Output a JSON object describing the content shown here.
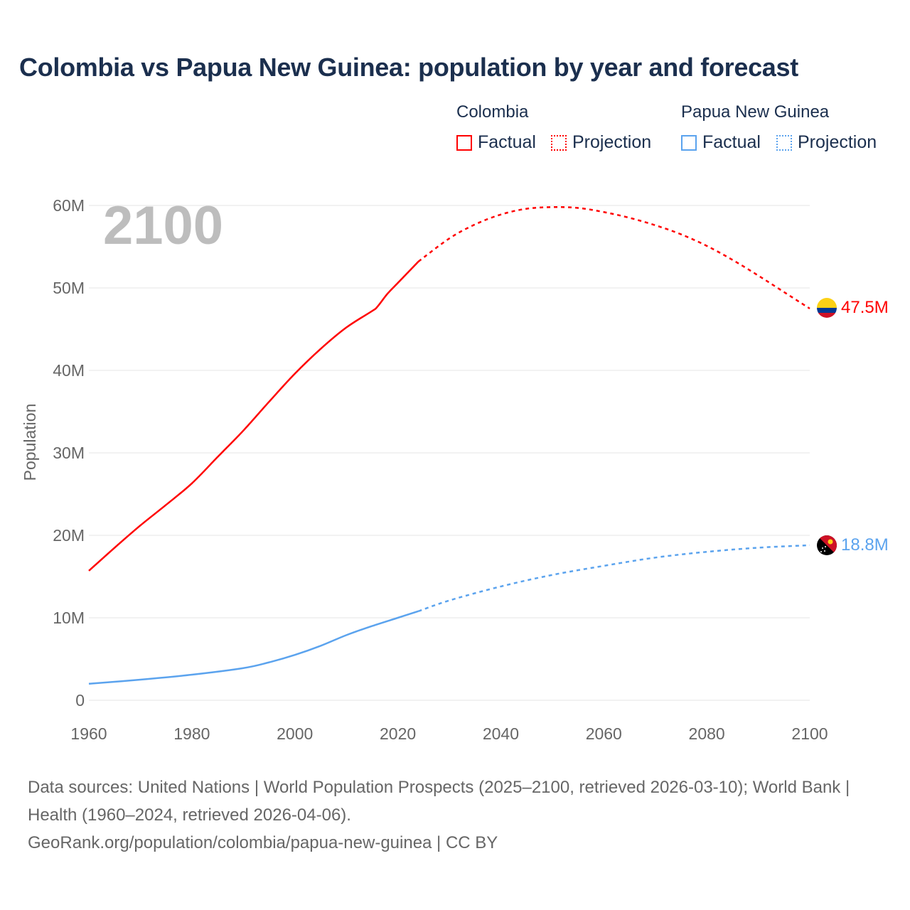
{
  "title": "Colombia vs Papua New Guinea: population by year and forecast",
  "legend": {
    "groups": [
      {
        "name": "Colombia",
        "factual": "Factual",
        "projection": "Projection"
      },
      {
        "name": "Papua New Guinea",
        "factual": "Factual",
        "projection": "Projection"
      }
    ]
  },
  "footer": {
    "line1": "Data sources: United Nations | World Population Prospects (2025–2100, retrieved 2026-03-10); World Bank | Health (1960–2024, retrieved 2026-04-06).",
    "line2": "GeoRank.org/population/colombia/papua-new-guinea | CC BY"
  },
  "chart_data": {
    "type": "line",
    "title": "Colombia vs Papua New Guinea: population by year and forecast",
    "xlabel": "",
    "ylabel": "Population",
    "xlim": [
      1960,
      2100
    ],
    "ylim": [
      0,
      60000000
    ],
    "x_ticks": [
      "1960",
      "1980",
      "2000",
      "2020",
      "2040",
      "2060",
      "2080",
      "2100"
    ],
    "y_ticks": [
      "0",
      "10M",
      "20M",
      "30M",
      "40M",
      "50M",
      "60M"
    ],
    "year_watermark": "2100",
    "grid": true,
    "series": [
      {
        "name": "Colombia",
        "color": "#ff0000",
        "end_label": "47.5M",
        "factual": [
          [
            1960,
            15.7
          ],
          [
            1965,
            18.5
          ],
          [
            1970,
            21.2
          ],
          [
            1975,
            23.7
          ],
          [
            1980,
            26.3
          ],
          [
            1985,
            29.5
          ],
          [
            1990,
            32.7
          ],
          [
            1995,
            36.2
          ],
          [
            2000,
            39.6
          ],
          [
            2005,
            42.6
          ],
          [
            2010,
            45.2
          ],
          [
            2015,
            47.2
          ],
          [
            2016,
            47.7
          ],
          [
            2018,
            49.3
          ],
          [
            2020,
            50.6
          ],
          [
            2024,
            53.2
          ]
        ],
        "projection": [
          [
            2024,
            53.2
          ],
          [
            2030,
            56.0
          ],
          [
            2035,
            57.7
          ],
          [
            2040,
            58.9
          ],
          [
            2045,
            59.6
          ],
          [
            2050,
            59.8
          ],
          [
            2055,
            59.7
          ],
          [
            2060,
            59.2
          ],
          [
            2065,
            58.5
          ],
          [
            2070,
            57.6
          ],
          [
            2075,
            56.5
          ],
          [
            2080,
            55.1
          ],
          [
            2085,
            53.4
          ],
          [
            2090,
            51.5
          ],
          [
            2095,
            49.5
          ],
          [
            2100,
            47.5
          ]
        ]
      },
      {
        "name": "Papua New Guinea",
        "color": "#5ba3ee",
        "end_label": "18.8M",
        "factual": [
          [
            1960,
            2.0
          ],
          [
            1970,
            2.5
          ],
          [
            1980,
            3.1
          ],
          [
            1990,
            3.9
          ],
          [
            1995,
            4.6
          ],
          [
            2000,
            5.5
          ],
          [
            2005,
            6.6
          ],
          [
            2010,
            7.9
          ],
          [
            2015,
            9.0
          ],
          [
            2020,
            10.0
          ],
          [
            2024,
            10.8
          ]
        ],
        "projection": [
          [
            2024,
            10.8
          ],
          [
            2030,
            12.1
          ],
          [
            2040,
            13.8
          ],
          [
            2050,
            15.2
          ],
          [
            2060,
            16.3
          ],
          [
            2070,
            17.3
          ],
          [
            2080,
            18.0
          ],
          [
            2090,
            18.5
          ],
          [
            2100,
            18.8
          ]
        ]
      }
    ],
    "units": "millions"
  }
}
